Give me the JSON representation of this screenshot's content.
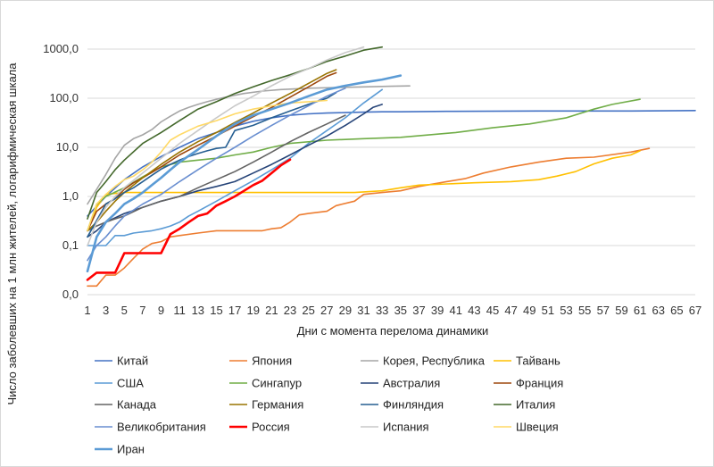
{
  "chart_data": {
    "type": "line",
    "title": "",
    "xlabel": "Дни с момента перелома динамики",
    "ylabel": "Число заболевших на 1 млн жителей, логарифмическая шкала",
    "y_scale": "log",
    "ylim": [
      0.01,
      1000
    ],
    "xlim": [
      1,
      67
    ],
    "grid": true,
    "legend_position": "bottom",
    "y_tick_values": [
      0.01,
      0.1,
      1,
      10,
      100,
      1000
    ],
    "y_tick_labels": [
      "0,0",
      "0,1",
      "1,0",
      "10,0",
      "100,0",
      "1000,0"
    ],
    "x_tick_labels": [
      "1",
      "3",
      "5",
      "7",
      "9",
      "11",
      "13",
      "15",
      "17",
      "19",
      "21",
      "23",
      "25",
      "27",
      "29",
      "31",
      "33",
      "35",
      "37",
      "39",
      "41",
      "43",
      "45",
      "47",
      "49",
      "51",
      "53",
      "55",
      "57",
      "59",
      "61",
      "63",
      "65",
      "67"
    ],
    "series": [
      {
        "name": "Китай",
        "color": "#4472C4",
        "width": 1.6,
        "x": [
          1,
          3,
          5,
          7,
          9,
          11,
          13,
          15,
          17,
          19,
          21,
          23,
          25,
          27,
          29,
          31,
          33,
          35,
          40,
          50,
          60,
          67
        ],
        "y": [
          0.4,
          1.0,
          2.2,
          4.0,
          6.5,
          10,
          15,
          20,
          27,
          34,
          40,
          45,
          48,
          50,
          51,
          52,
          53,
          53,
          54,
          55,
          55,
          56
        ]
      },
      {
        "name": "Япония",
        "color": "#ED7D31",
        "width": 1.6,
        "x": [
          1,
          2,
          3,
          4,
          5,
          6,
          7,
          8,
          9,
          10,
          11,
          13,
          15,
          20,
          21,
          22,
          23,
          24,
          25,
          27,
          28,
          30,
          31,
          33,
          35,
          37,
          40,
          42,
          44,
          47,
          50,
          53,
          56,
          60,
          62
        ],
        "y": [
          0.015,
          0.015,
          0.025,
          0.025,
          0.035,
          0.055,
          0.085,
          0.11,
          0.12,
          0.15,
          0.16,
          0.18,
          0.2,
          0.2,
          0.22,
          0.23,
          0.3,
          0.42,
          0.45,
          0.5,
          0.65,
          0.8,
          1.1,
          1.2,
          1.3,
          1.6,
          2,
          2.3,
          3,
          4,
          5,
          6,
          6.3,
          8,
          9.5
        ]
      },
      {
        "name": "Корея, Республика",
        "color": "#A5A5A5",
        "width": 1.6,
        "x": [
          1,
          2,
          3,
          4,
          5,
          6,
          7,
          8,
          9,
          10,
          11,
          12,
          13,
          14,
          15,
          16,
          17,
          18,
          20,
          22,
          25,
          28,
          31,
          34,
          36
        ],
        "y": [
          0.7,
          1.4,
          2.8,
          6,
          11,
          15,
          18,
          23,
          33,
          43,
          55,
          65,
          75,
          85,
          95,
          105,
          115,
          125,
          140,
          150,
          160,
          165,
          170,
          175,
          178
        ]
      },
      {
        "name": "Тайвань",
        "color": "#FFC000",
        "width": 1.6,
        "x": [
          1,
          2,
          3,
          5,
          7,
          9,
          11,
          13,
          15,
          17,
          20,
          23,
          25,
          27,
          30,
          33,
          35,
          37,
          40,
          43,
          47,
          50,
          52,
          54,
          56,
          58,
          60,
          61
        ],
        "y": [
          0.2,
          0.6,
          1.1,
          1.2,
          1.2,
          1.2,
          1.2,
          1.2,
          1.2,
          1.2,
          1.2,
          1.2,
          1.2,
          1.2,
          1.2,
          1.3,
          1.5,
          1.7,
          1.8,
          1.9,
          2,
          2.2,
          2.6,
          3.2,
          4.6,
          6,
          7,
          8.5
        ]
      },
      {
        "name": "США",
        "color": "#5B9BD5",
        "width": 1.6,
        "x": [
          1,
          2,
          3,
          4,
          5,
          6,
          7,
          8,
          9,
          10,
          11,
          12,
          13,
          15,
          17,
          19,
          21,
          23,
          25,
          27,
          29,
          31,
          33
        ],
        "y": [
          0.1,
          0.1,
          0.1,
          0.16,
          0.16,
          0.18,
          0.19,
          0.2,
          0.22,
          0.25,
          0.3,
          0.4,
          0.5,
          0.8,
          1.3,
          2.1,
          3.5,
          6,
          12,
          22,
          40,
          80,
          150
        ]
      },
      {
        "name": "Сингапур",
        "color": "#70AD47",
        "width": 1.6,
        "x": [
          1,
          2,
          3,
          5,
          7,
          9,
          11,
          13,
          15,
          17,
          19,
          21,
          23,
          27,
          31,
          35,
          41,
          45,
          49,
          53,
          56,
          58,
          61
        ],
        "y": [
          0.2,
          0.7,
          1,
          1.5,
          2.5,
          4,
          5,
          5.5,
          6,
          7,
          8,
          10,
          12,
          14,
          15,
          16,
          20,
          25,
          30,
          40,
          60,
          75,
          95
        ]
      },
      {
        "name": "Австралия",
        "color": "#264478",
        "width": 1.6,
        "x": [
          1,
          2,
          3,
          5,
          7,
          9,
          11,
          13,
          15,
          17,
          19,
          21,
          23,
          25,
          27,
          29,
          31,
          32,
          33
        ],
        "y": [
          0.15,
          0.2,
          0.3,
          0.45,
          0.6,
          0.8,
          1,
          1.3,
          1.6,
          2,
          3,
          4.5,
          7,
          11,
          17,
          28,
          48,
          65,
          75
        ]
      },
      {
        "name": "Франция",
        "color": "#9E480E",
        "width": 1.6,
        "x": [
          1,
          2,
          3,
          4,
          5,
          6,
          7,
          8,
          9,
          11,
          13,
          15,
          17,
          19,
          21,
          23,
          25,
          27,
          28
        ],
        "y": [
          0.2,
          0.5,
          0.7,
          0.9,
          1.4,
          1.9,
          2.4,
          3.1,
          4,
          7,
          11,
          17,
          27,
          42,
          65,
          105,
          170,
          280,
          330
        ]
      },
      {
        "name": "Канада",
        "color": "#636363",
        "width": 1.6,
        "x": [
          1,
          2,
          3,
          4,
          5,
          7,
          9,
          11,
          13,
          15,
          17,
          19,
          21,
          23,
          25,
          27,
          29
        ],
        "y": [
          0.2,
          0.25,
          0.3,
          0.35,
          0.4,
          0.6,
          0.8,
          1,
          1.5,
          2.2,
          3.2,
          5,
          8,
          13,
          20,
          30,
          45
        ]
      },
      {
        "name": "Германия",
        "color": "#997300",
        "width": 1.6,
        "x": [
          1,
          2,
          3,
          4,
          5,
          6,
          7,
          9,
          11,
          13,
          15,
          17,
          19,
          21,
          23,
          25,
          27,
          28
        ],
        "y": [
          0.2,
          0.3,
          0.5,
          0.8,
          1.2,
          1.7,
          2.4,
          4.5,
          8,
          13,
          20,
          32,
          50,
          80,
          125,
          200,
          320,
          380
        ]
      },
      {
        "name": "Финляндия",
        "color": "#255E91",
        "width": 1.6,
        "x": [
          1,
          3,
          4,
          5,
          6,
          7,
          8,
          9,
          10,
          11,
          12,
          13,
          14,
          15,
          16,
          17,
          19,
          21,
          23,
          25,
          27,
          28
        ],
        "y": [
          0.15,
          0.7,
          0.9,
          1.2,
          1.5,
          2,
          2.7,
          3.6,
          4.5,
          5.5,
          6.5,
          7.5,
          8.5,
          9.5,
          10,
          22,
          28,
          40,
          55,
          75,
          100,
          130
        ]
      },
      {
        "name": "Италия",
        "color": "#43682B",
        "width": 1.6,
        "x": [
          1,
          2,
          3,
          4,
          5,
          7,
          9,
          11,
          13,
          15,
          17,
          19,
          21,
          23,
          25,
          27,
          29,
          31,
          33
        ],
        "y": [
          0.35,
          1.2,
          2,
          3.5,
          5.5,
          12,
          20,
          35,
          60,
          85,
          125,
          170,
          230,
          300,
          400,
          560,
          720,
          950,
          1100
        ]
      },
      {
        "name": "Великобритания",
        "color": "#698ED0",
        "width": 1.6,
        "x": [
          1,
          2,
          3,
          4,
          5,
          7,
          9,
          11,
          13,
          15,
          17,
          19,
          21,
          23,
          25,
          27,
          29
        ],
        "y": [
          0.05,
          0.1,
          0.15,
          0.25,
          0.4,
          0.7,
          1.1,
          2,
          3.5,
          6,
          10,
          17,
          28,
          45,
          70,
          110,
          160
        ]
      },
      {
        "name": "Россия",
        "color": "#FF0000",
        "width": 2.6,
        "x": [
          1,
          2,
          3,
          4,
          5,
          6,
          7,
          8,
          9,
          10,
          11,
          12,
          13,
          14,
          15,
          16,
          17,
          18,
          19,
          20,
          21,
          22,
          23
        ],
        "y": [
          0.02,
          0.028,
          0.028,
          0.028,
          0.07,
          0.07,
          0.07,
          0.07,
          0.07,
          0.17,
          0.22,
          0.3,
          0.4,
          0.45,
          0.65,
          0.8,
          1.0,
          1.3,
          1.7,
          2.1,
          3.0,
          4.3,
          5.6
        ]
      },
      {
        "name": "Испания",
        "color": "#C9C9C9",
        "width": 1.6,
        "x": [
          1,
          2,
          3,
          4,
          5,
          7,
          9,
          11,
          13,
          15,
          17,
          19,
          21,
          23,
          25,
          27,
          29,
          31
        ],
        "y": [
          0.1,
          0.3,
          0.6,
          1,
          1.5,
          3,
          6,
          12,
          22,
          40,
          70,
          110,
          180,
          280,
          400,
          600,
          850,
          1100
        ]
      },
      {
        "name": "Швеция",
        "color": "#FFD966",
        "width": 1.6,
        "x": [
          1,
          2,
          3,
          4,
          5,
          6,
          7,
          8,
          9,
          10,
          11,
          13,
          15,
          17,
          19,
          21,
          23,
          25,
          27
        ],
        "y": [
          0.2,
          0.7,
          1.1,
          1.6,
          2.2,
          2.6,
          3.5,
          5,
          8,
          14,
          18,
          27,
          35,
          48,
          60,
          70,
          80,
          85,
          90
        ]
      },
      {
        "name": "Иран",
        "color": "#5B9BD5",
        "width": 2.6,
        "x": [
          1,
          2,
          3,
          4,
          5,
          6,
          7,
          8,
          9,
          10,
          11,
          13,
          15,
          17,
          19,
          21,
          23,
          25,
          27,
          29,
          31,
          33,
          35
        ],
        "y": [
          0.03,
          0.15,
          0.3,
          0.45,
          0.7,
          0.9,
          1.2,
          1.7,
          2.4,
          3.5,
          5,
          9,
          17,
          30,
          45,
          60,
          80,
          110,
          150,
          180,
          210,
          240,
          290
        ]
      }
    ]
  }
}
